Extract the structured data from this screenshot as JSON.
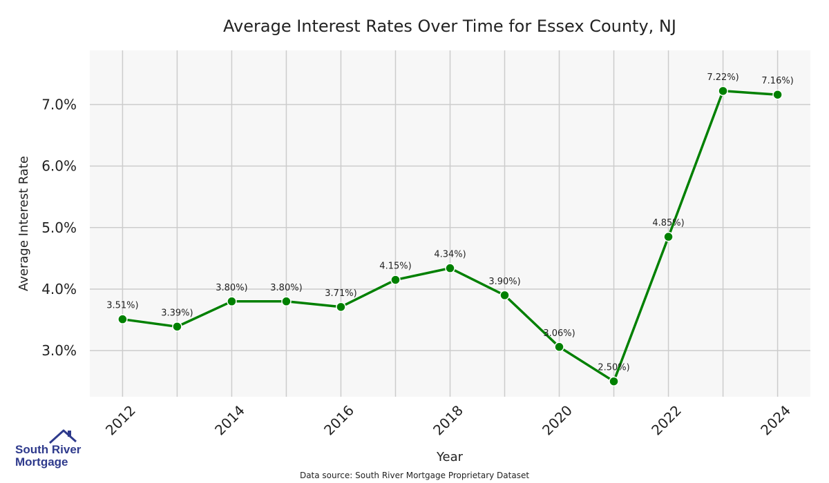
{
  "chart_data": {
    "type": "line",
    "title": "Average Interest Rates Over Time for Essex County, NJ",
    "xlabel": "Year",
    "ylabel": "Average Interest Rate",
    "x": [
      2012,
      2013,
      2014,
      2015,
      2016,
      2017,
      2018,
      2019,
      2020,
      2021,
      2022,
      2023,
      2024
    ],
    "y": [
      3.51,
      3.39,
      3.8,
      3.8,
      3.71,
      4.15,
      4.34,
      3.9,
      3.06,
      2.5,
      4.85,
      7.22,
      7.16
    ],
    "data_labels": [
      "3.51%)",
      "3.39%)",
      "3.80%)",
      "3.80%)",
      "3.71%)",
      "4.15%)",
      "4.34%)",
      "3.90%)",
      "3.06%)",
      "2.50%)",
      "4.85%)",
      "7.22%)",
      "7.16%)"
    ],
    "xticks": [
      "2012",
      "2014",
      "2016",
      "2018",
      "2020",
      "2022",
      "2024"
    ],
    "yticks": [
      "3.0%",
      "4.0%",
      "5.0%",
      "6.0%",
      "7.0%"
    ],
    "ytick_values": [
      3.0,
      4.0,
      5.0,
      6.0,
      7.0
    ],
    "xlim": [
      2011.4,
      2024.6
    ],
    "ylim": [
      2.25,
      7.88
    ],
    "grid": true,
    "line_color": "#008000",
    "background_color": "#f7f7f7",
    "grid_color": "#cccccc"
  },
  "source_note": "Data source: South River Mortgage Proprietary Dataset",
  "logo": {
    "line1": "South River",
    "line2": "Mortgage",
    "color": "#2e3a8c",
    "icon": "house-roof-icon"
  }
}
